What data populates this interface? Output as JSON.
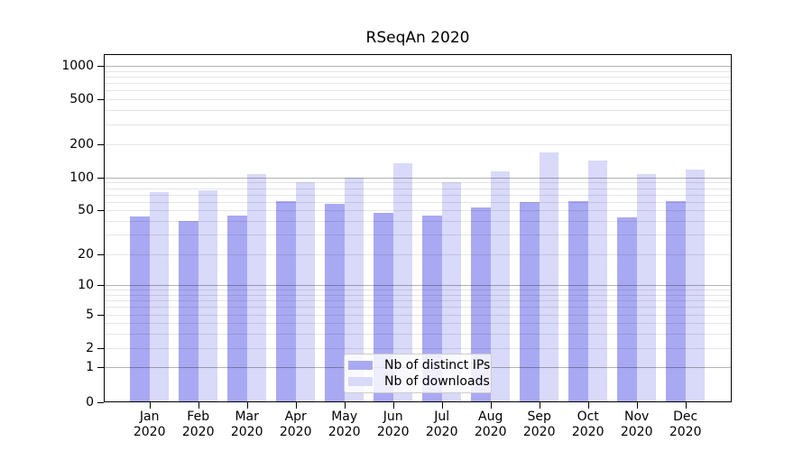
{
  "chart_data": {
    "type": "bar",
    "title": "RSeqAn 2020",
    "categories": [
      "Jan 2020",
      "Feb 2020",
      "Mar 2020",
      "Apr 2020",
      "May 2020",
      "Jun 2020",
      "Jul 2020",
      "Aug 2020",
      "Sep 2020",
      "Oct 2020",
      "Nov 2020",
      "Dec 2020"
    ],
    "series": [
      {
        "name": "Nb of distinct IPs",
        "color": "#a9a9f3",
        "values": [
          44,
          40,
          45,
          61,
          57,
          47,
          45,
          53,
          60,
          61,
          43,
          61
        ]
      },
      {
        "name": "Nb of downloads",
        "color": "#d9d9f9",
        "values": [
          74,
          76,
          108,
          90,
          100,
          135,
          90,
          115,
          170,
          142,
          108,
          119
        ]
      }
    ],
    "xlabel": "",
    "ylabel": "",
    "yscale": "symlog",
    "yticks": [
      0,
      1,
      2,
      5,
      10,
      20,
      50,
      100,
      200,
      500,
      1000
    ],
    "ylim": [
      0,
      1300
    ],
    "grid": true,
    "legend_position": "lower center"
  }
}
